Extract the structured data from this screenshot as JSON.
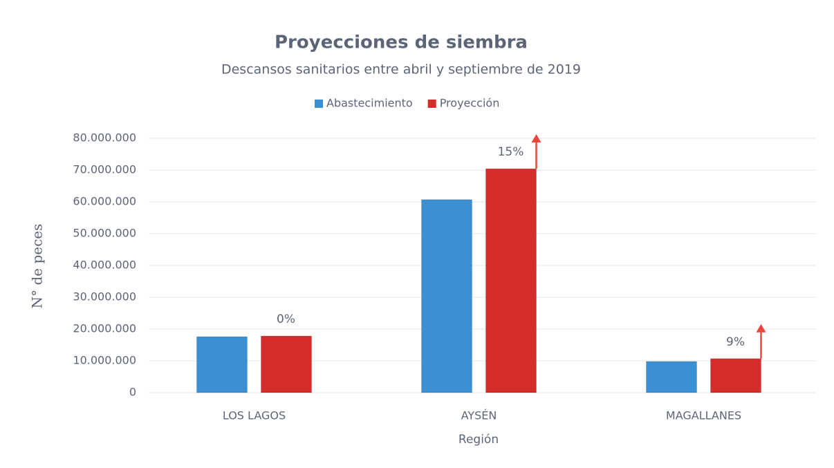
{
  "chart_data": {
    "type": "bar",
    "title": "Proyecciones de siembra",
    "subtitle": "Descansos sanitarios entre abril y septiembre de 2019",
    "x_label": "Región",
    "y_label": "N° de peces",
    "categories": [
      "LOS LAGOS",
      "AYSÉN",
      "MAGALLANES"
    ],
    "series": [
      {
        "name": "Abastecimiento",
        "color": "#3b8fd3",
        "values": [
          17600000,
          60700000,
          9800000
        ]
      },
      {
        "name": "Proyección",
        "color": "#d42b2b",
        "values": [
          17800000,
          70400000,
          10700000
        ]
      }
    ],
    "annotations": [
      "0%",
      "15%",
      "9%"
    ],
    "ylim": [
      0,
      80000000
    ],
    "yticks": [
      0,
      {
        "value": 10000000,
        "label": "10.000.000"
      },
      {
        "value": 20000000,
        "label": "20.000.000"
      },
      {
        "value": 30000000,
        "label": "30.000.000"
      },
      {
        "value": 40000000,
        "label": "40.000.000"
      },
      {
        "value": 50000000,
        "label": "50.000.000"
      },
      {
        "value": 60000000,
        "label": "60.000.000"
      },
      {
        "value": 70000000,
        "label": "70.000.000"
      },
      {
        "value": 80000000,
        "label": "80.000.000"
      }
    ],
    "grid": true,
    "legend": "top"
  }
}
